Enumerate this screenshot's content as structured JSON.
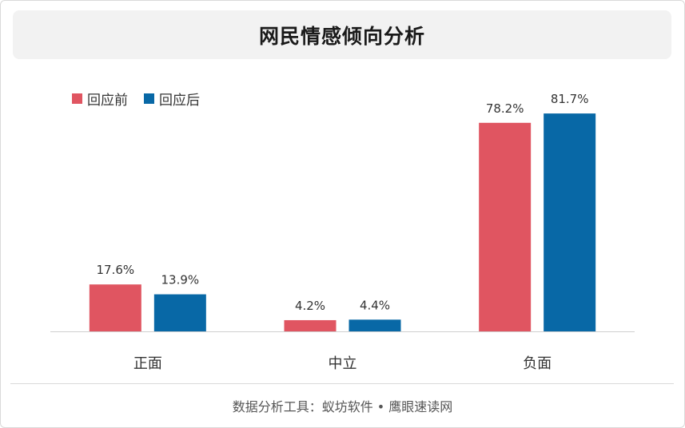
{
  "title": "网民情感倾向分析",
  "chart_data": {
    "type": "bar",
    "categories": [
      "正面",
      "中立",
      "负面"
    ],
    "series": [
      {
        "name": "回应前",
        "values": [
          17.6,
          4.2,
          78.2
        ],
        "labels": [
          "17.6%",
          "4.2%",
          "78.2%"
        ],
        "color": "#e05561"
      },
      {
        "name": "回应后",
        "values": [
          13.9,
          4.4,
          81.7
        ],
        "labels": [
          "13.9%",
          "4.4%",
          "81.7%"
        ],
        "color": "#0868a6"
      }
    ],
    "ylim": [
      0,
      100
    ],
    "grid": false,
    "legend_position": "top-left"
  },
  "footer": "数据分析工具：蚁坊软件 • 鹰眼速读网"
}
